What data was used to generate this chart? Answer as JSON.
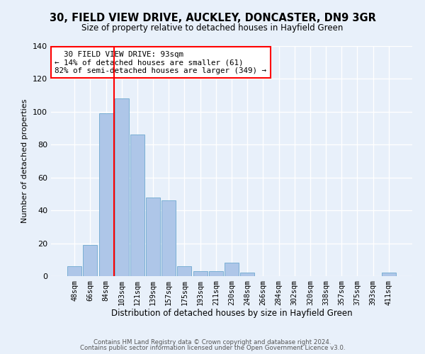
{
  "title1": "30, FIELD VIEW DRIVE, AUCKLEY, DONCASTER, DN9 3GR",
  "title2": "Size of property relative to detached houses in Hayfield Green",
  "xlabel": "Distribution of detached houses by size in Hayfield Green",
  "ylabel": "Number of detached properties",
  "categories": [
    "48sqm",
    "66sqm",
    "84sqm",
    "103sqm",
    "121sqm",
    "139sqm",
    "157sqm",
    "175sqm",
    "193sqm",
    "211sqm",
    "230sqm",
    "248sqm",
    "266sqm",
    "284sqm",
    "302sqm",
    "320sqm",
    "338sqm",
    "357sqm",
    "375sqm",
    "393sqm",
    "411sqm"
  ],
  "values": [
    6,
    19,
    99,
    108,
    86,
    48,
    46,
    6,
    3,
    3,
    8,
    2,
    0,
    0,
    0,
    0,
    0,
    0,
    0,
    0,
    2
  ],
  "bar_color": "#aec6e8",
  "bar_edge_color": "#7aafd4",
  "red_line_color": "red",
  "ylim": [
    0,
    140
  ],
  "yticks": [
    0,
    20,
    40,
    60,
    80,
    100,
    120,
    140
  ],
  "annotation_text": "  30 FIELD VIEW DRIVE: 93sqm  \n← 14% of detached houses are smaller (61)\n82% of semi-detached houses are larger (349) →",
  "annotation_box_color": "white",
  "annotation_box_edge_color": "red",
  "footer1": "Contains HM Land Registry data © Crown copyright and database right 2024.",
  "footer2": "Contains public sector information licensed under the Open Government Licence v3.0.",
  "bg_color": "#e8f0fa",
  "grid_color": "white",
  "title1_fontsize": 10.5,
  "title2_fontsize": 8.5
}
